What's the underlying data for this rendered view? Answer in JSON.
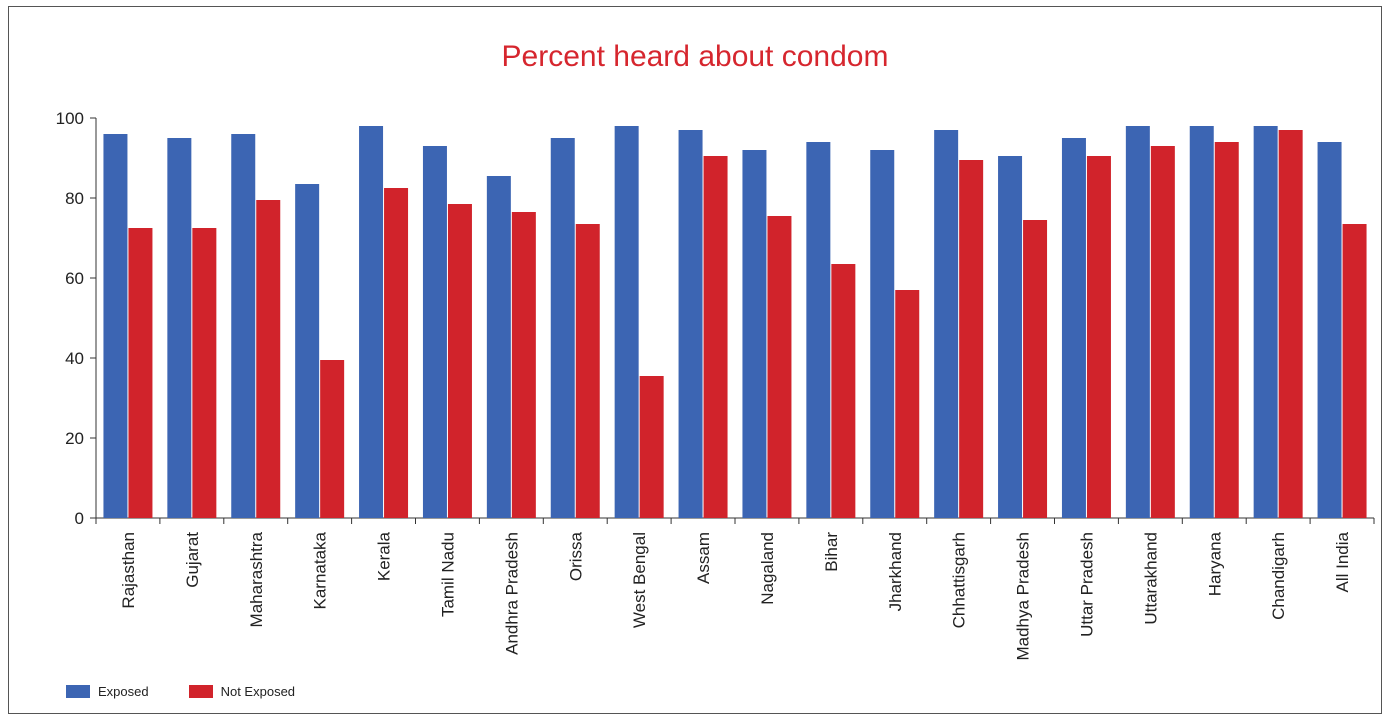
{
  "chart_data": {
    "type": "bar",
    "title": "Percent heard about condom",
    "categories": [
      "Rajasthan",
      "Gujarat",
      "Maharashtra",
      "Karnataka",
      "Kerala",
      "Tamil Nadu",
      "Andhra Pradesh",
      "Orissa",
      "West Bengal",
      "Assam",
      "Nagaland",
      "Bihar",
      "Jharkhand",
      "Chhattisgarh",
      "Madhya Pradesh",
      "Uttar Pradesh",
      "Uttarakhand",
      "Haryana",
      "Chandigarh",
      "All India"
    ],
    "series": [
      {
        "name": "Exposed",
        "color": "#3c65b3",
        "values": [
          96,
          95,
          96,
          83.5,
          98,
          93,
          85.5,
          95,
          98,
          97,
          92,
          94,
          92,
          97,
          90.5,
          95,
          98,
          98,
          98,
          94
        ]
      },
      {
        "name": "Not Exposed",
        "color": "#d1232b",
        "values": [
          72.5,
          72.5,
          79.5,
          39.5,
          82.5,
          78.5,
          76.5,
          73.5,
          35.5,
          90.5,
          75.5,
          63.5,
          57,
          89.5,
          74.5,
          90.5,
          93,
          94,
          97,
          73.5
        ]
      }
    ],
    "ylim": [
      0,
      100
    ],
    "yticks": [
      0,
      20,
      40,
      60,
      80,
      100
    ],
    "xlabel": "",
    "ylabel": "",
    "grid": false,
    "legend_position": "bottom-left"
  }
}
